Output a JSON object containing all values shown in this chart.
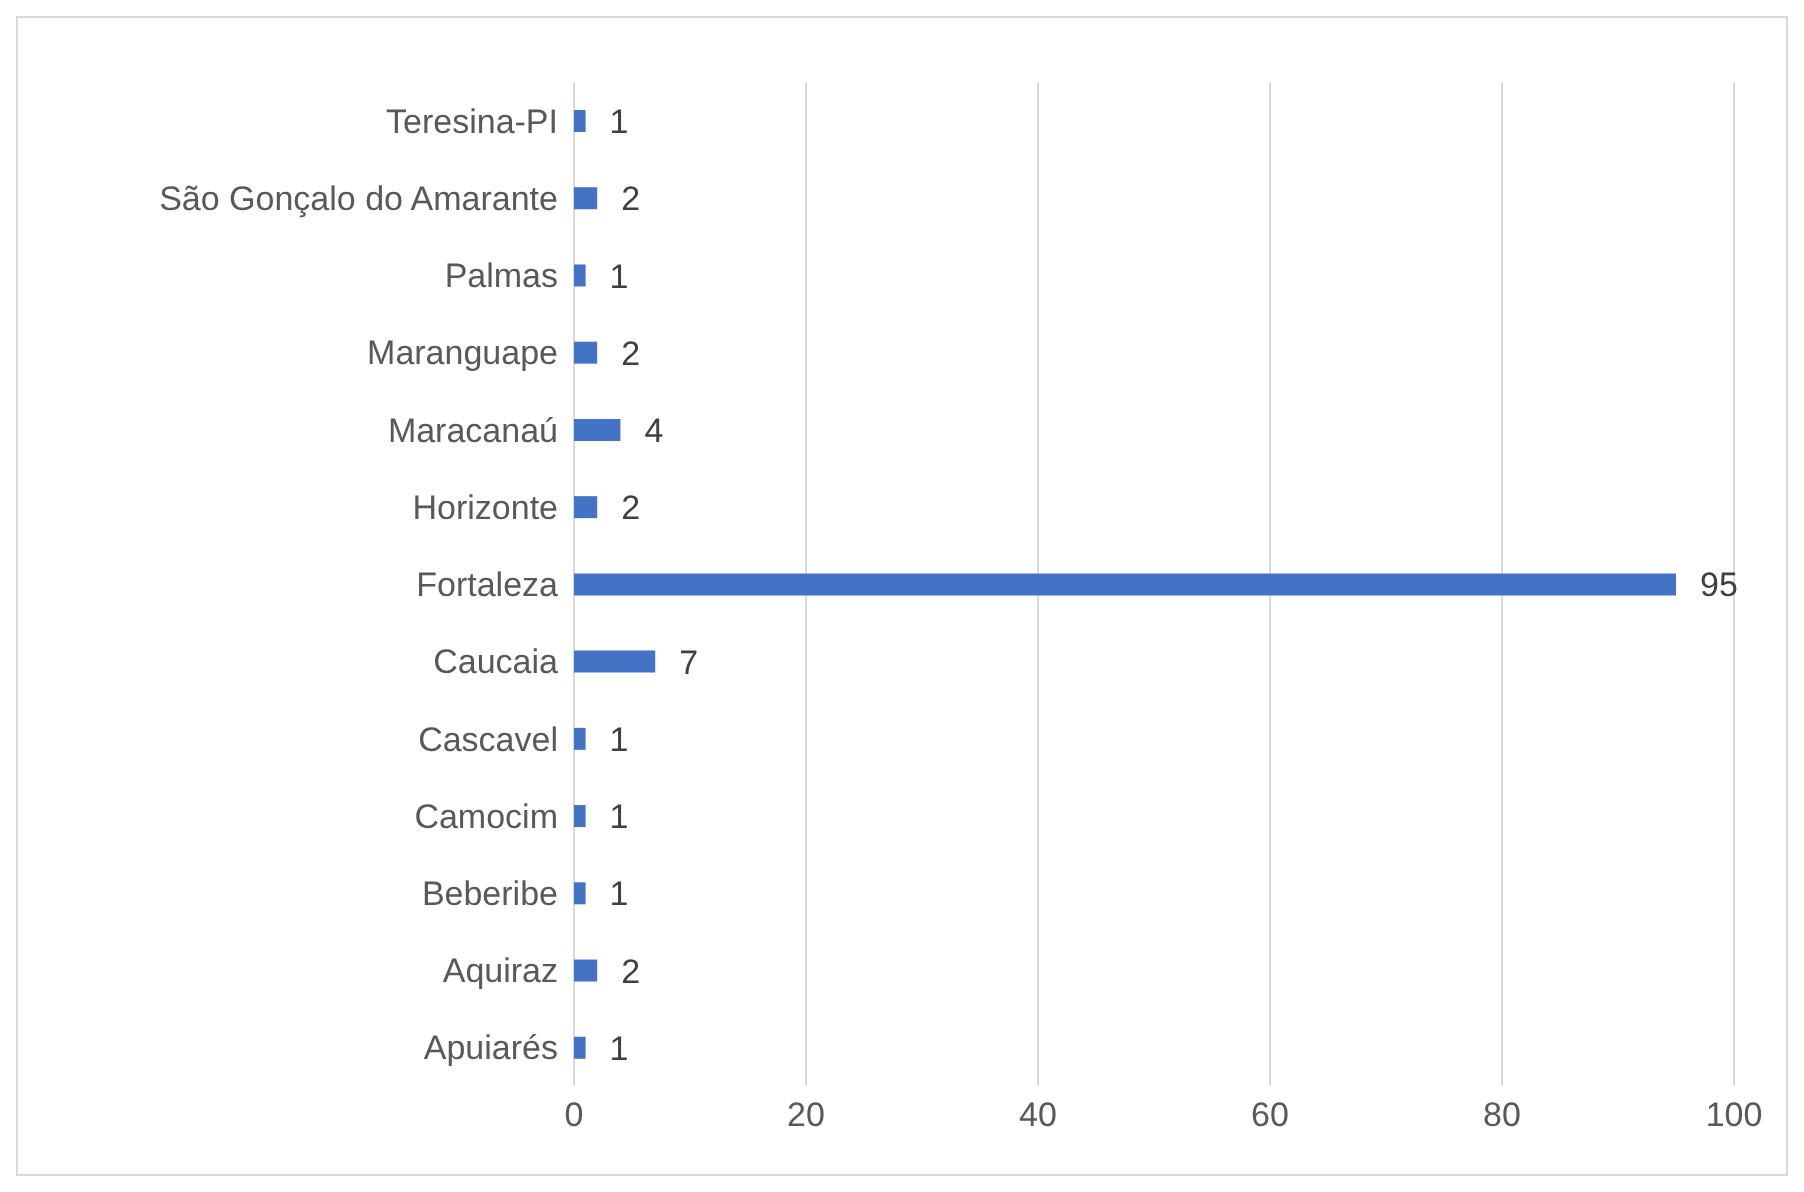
{
  "chart_data": {
    "type": "bar",
    "orientation": "horizontal",
    "categories": [
      "Teresina-PI",
      "São Gonçalo do Amarante",
      "Palmas",
      "Maranguape",
      "Maracanaú",
      "Horizonte",
      "Fortaleza",
      "Caucaia",
      "Cascavel",
      "Camocim",
      "Beberibe",
      "Aquiraz",
      "Apuiarés"
    ],
    "values": [
      1,
      2,
      1,
      2,
      4,
      2,
      95,
      7,
      1,
      1,
      1,
      2,
      1
    ],
    "color": "#4472c4",
    "xlim": [
      0,
      100
    ],
    "xticks": [
      0,
      20,
      40,
      60,
      80,
      100
    ],
    "grid": "x",
    "data_labels": true
  }
}
